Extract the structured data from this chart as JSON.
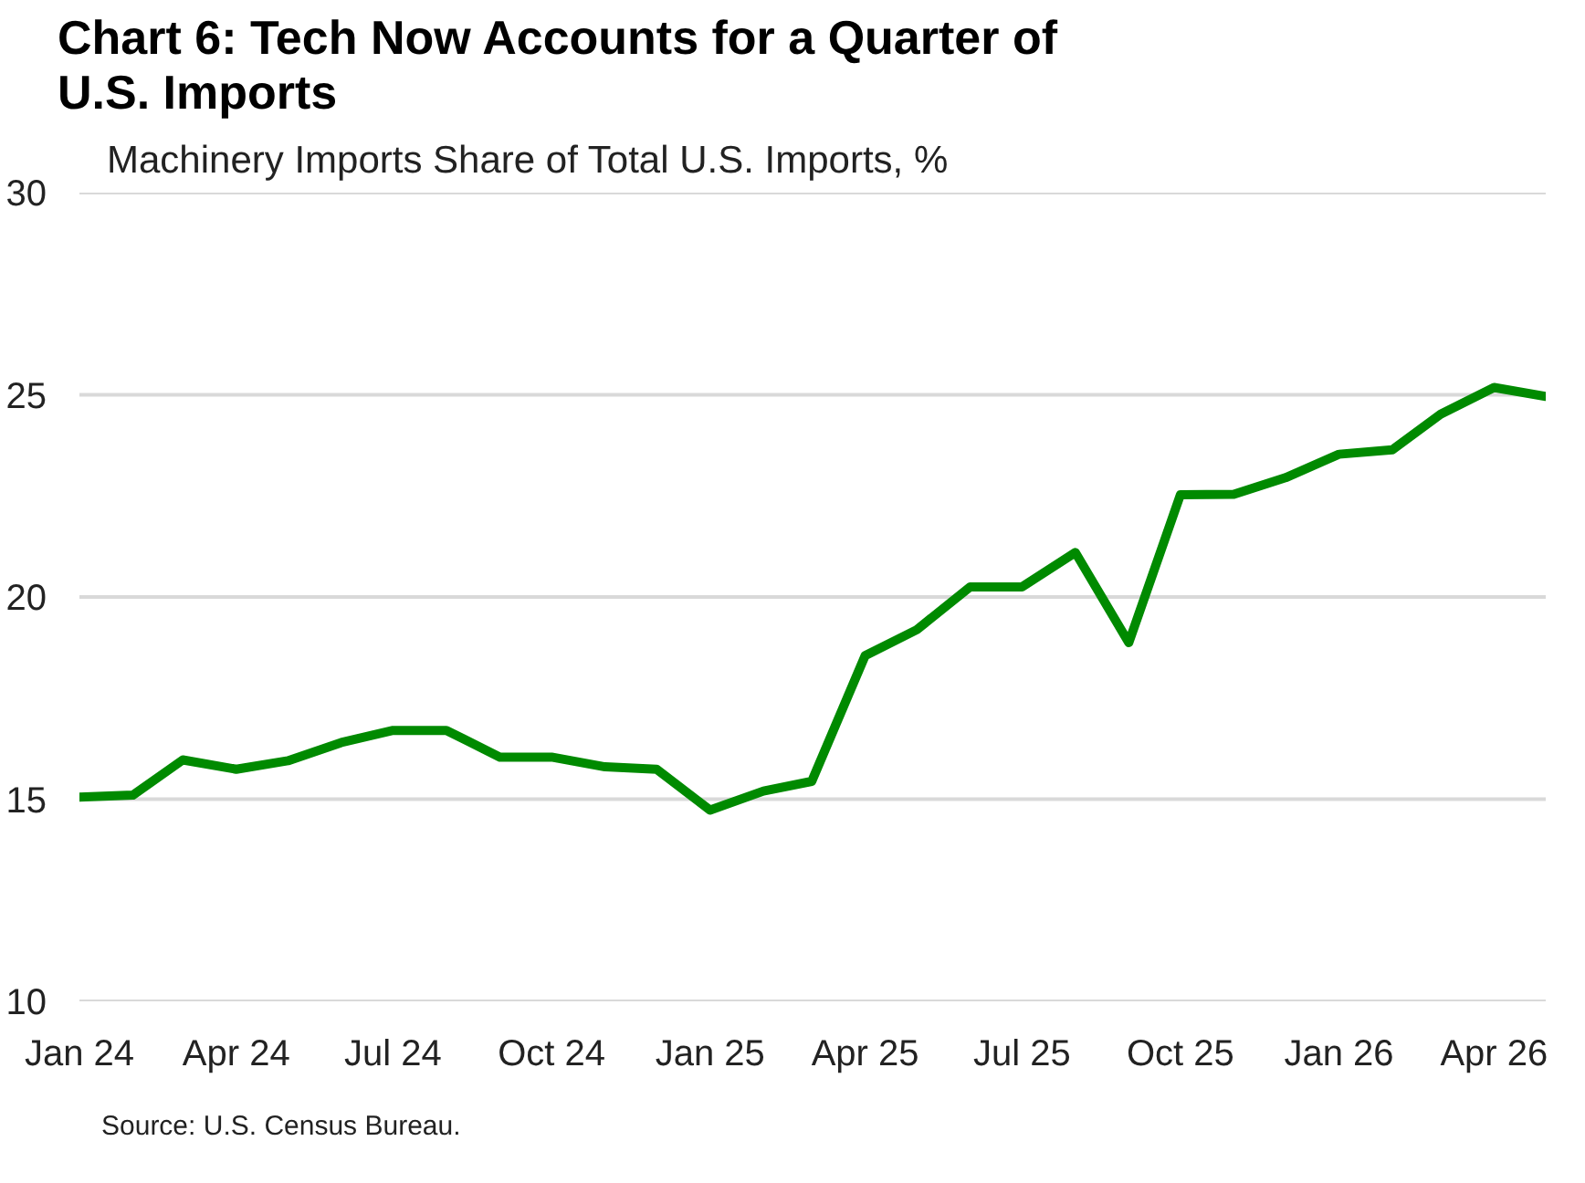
{
  "chart_data": {
    "type": "line",
    "title": "Chart 6: Tech Now Accounts for a Quarter of U.S. Imports",
    "ylabel": "Machinery Imports Share of Total U.S. Imports, %",
    "annotations": [
      "Source: U.S. Census Bureau."
    ],
    "x": [
      "2024-01",
      "2024-02",
      "2024-03",
      "2024-04",
      "2024-05",
      "2024-06",
      "2024-07",
      "2024-08",
      "2024-09",
      "2024-10",
      "2024-11",
      "2024-12",
      "2025-01",
      "2025-02",
      "2025-03",
      "2025-04",
      "2025-05",
      "2025-06",
      "2025-07",
      "2025-08",
      "2025-09",
      "2025-10",
      "2025-11",
      "2025-12",
      "2026-01",
      "2026-02",
      "2026-03",
      "2026-04",
      "2026-05"
    ],
    "series": [
      {
        "color": "#008a00",
        "values": [
          15.05,
          15.1,
          15.97,
          15.74,
          15.95,
          16.4,
          16.7,
          16.7,
          16.04,
          16.04,
          15.8,
          15.74,
          14.73,
          15.2,
          15.44,
          18.55,
          19.19,
          20.25,
          20.25,
          21.1,
          18.87,
          22.53,
          22.54,
          22.95,
          23.53,
          23.64,
          24.52,
          25.18,
          24.96
        ]
      }
    ],
    "xlim": [
      "2024-01",
      "2026-05"
    ],
    "ylim": [
      10,
      30
    ],
    "xticks": [
      {
        "value": "2024-01",
        "label": "Jan 24"
      },
      {
        "value": "2024-04",
        "label": "Apr 24"
      },
      {
        "value": "2024-07",
        "label": "Jul 24"
      },
      {
        "value": "2024-10",
        "label": "Oct 24"
      },
      {
        "value": "2025-01",
        "label": "Jan 25"
      },
      {
        "value": "2025-04",
        "label": "Apr 25"
      },
      {
        "value": "2025-07",
        "label": "Jul 25"
      },
      {
        "value": "2025-10",
        "label": "Oct 25"
      },
      {
        "value": "2026-01",
        "label": "Jan 26"
      },
      {
        "value": "2026-04",
        "label": "Apr 26"
      }
    ],
    "yticks": [
      10,
      15,
      20,
      25,
      30
    ],
    "grid": "y",
    "line_style": "solid",
    "marker": "none"
  }
}
